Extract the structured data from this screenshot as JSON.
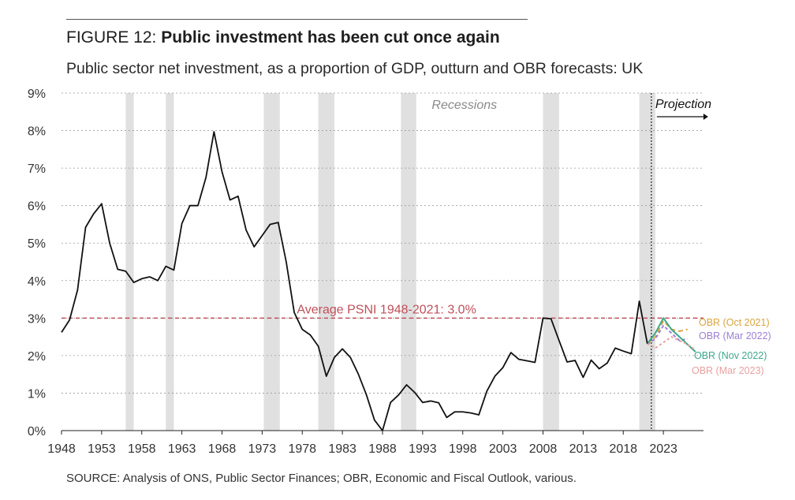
{
  "figure": {
    "label": "FIGURE 12:",
    "title": "Public investment has been cut once again",
    "subtitle": "Public sector net investment, as a proportion of GDP, outturn and OBR forecasts: UK",
    "source": "SOURCE: Analysis of ONS, Public Sector Finances; OBR, Economic and Fiscal Outlook, various."
  },
  "chart_data": {
    "type": "line",
    "ylim": [
      0,
      9
    ],
    "xlim": [
      1948,
      2028
    ],
    "y_ticks": [
      0,
      1,
      2,
      3,
      4,
      5,
      6,
      7,
      8,
      9
    ],
    "y_tick_labels": [
      "0%",
      "1%",
      "2%",
      "3%",
      "4%",
      "5%",
      "6%",
      "7%",
      "8%",
      "9%"
    ],
    "x_ticks": [
      1948,
      1953,
      1958,
      1963,
      1968,
      1973,
      1978,
      1983,
      1988,
      1993,
      1998,
      2003,
      2008,
      2013,
      2018,
      2023
    ],
    "x_tick_labels": [
      "1948",
      "1953",
      "1958",
      "1963",
      "1968",
      "1973",
      "1978",
      "1983",
      "1988",
      "1993",
      "1998",
      "2003",
      "2008",
      "2013",
      "2018",
      "2023"
    ],
    "grid": "horizontal dashed",
    "recessions_label": "Recessions",
    "recessions": [
      [
        1956,
        1957
      ],
      [
        1961,
        1962
      ],
      [
        1973.2,
        1975.2
      ],
      [
        1980,
        1982
      ],
      [
        1990.3,
        1992.2
      ],
      [
        2008,
        2010
      ],
      [
        2020,
        2022
      ]
    ],
    "projection_label": "Projection",
    "projection_start": 2021.5,
    "average": {
      "label": "Average PSNI 1948-2021: 3.0%",
      "value": 3.0,
      "color": "#c0505a"
    },
    "outturn": {
      "color": "#111111",
      "x": [
        1948,
        1949,
        1950,
        1951,
        1952,
        1953,
        1954,
        1955,
        1956,
        1957,
        1958,
        1959,
        1960,
        1961,
        1962,
        1963,
        1964,
        1965,
        1966,
        1967,
        1968,
        1969,
        1970,
        1971,
        1972,
        1973,
        1974,
        1975,
        1976,
        1977,
        1978,
        1979,
        1980,
        1981,
        1982,
        1983,
        1984,
        1985,
        1986,
        1987,
        1988,
        1989,
        1990,
        1991,
        1992,
        1993,
        1994,
        1995,
        1996,
        1997,
        1998,
        1999,
        2000,
        2001,
        2002,
        2003,
        2004,
        2005,
        2006,
        2007,
        2008,
        2009,
        2010,
        2011,
        2012,
        2013,
        2014,
        2015,
        2016,
        2017,
        2018,
        2019,
        2020,
        2021
      ],
      "y": [
        2.62,
        2.95,
        3.75,
        5.42,
        5.78,
        6.05,
        5.0,
        4.3,
        4.25,
        3.95,
        4.05,
        4.1,
        4.0,
        4.38,
        4.28,
        5.52,
        6.0,
        6.0,
        6.75,
        7.97,
        6.9,
        6.15,
        6.25,
        5.35,
        4.9,
        5.2,
        5.5,
        5.55,
        4.5,
        3.15,
        2.7,
        2.55,
        2.25,
        1.45,
        1.95,
        2.18,
        1.95,
        1.5,
        0.95,
        0.28,
        0.0,
        0.75,
        0.95,
        1.22,
        1.02,
        0.75,
        0.79,
        0.74,
        0.35,
        0.5,
        0.5,
        0.47,
        0.42,
        1.05,
        1.45,
        1.68,
        2.08,
        1.9,
        1.86,
        1.82,
        3.0,
        2.98,
        2.4,
        1.83,
        1.87,
        1.42,
        1.88,
        1.65,
        1.8,
        2.2,
        2.12,
        2.05,
        3.45,
        2.32
      ]
    },
    "series": [
      {
        "name": "OBR (Oct 2021)",
        "color": "#d9a53f",
        "x": [
          2021,
          2022,
          2023,
          2024,
          2025,
          2026
        ],
        "y": [
          2.32,
          2.5,
          2.93,
          2.7,
          2.65,
          2.7
        ]
      },
      {
        "name": "OBR (Mar 2022)",
        "color": "#9d7fd4",
        "x": [
          2021,
          2022,
          2023,
          2024,
          2025,
          2026
        ],
        "y": [
          2.3,
          2.45,
          2.8,
          2.6,
          2.4,
          2.45
        ]
      },
      {
        "name": "OBR (Nov 2022)",
        "color": "#3fa88a",
        "x": [
          2021,
          2022,
          2023,
          2024,
          2025,
          2026,
          2027
        ],
        "y": [
          2.32,
          2.6,
          3.0,
          2.7,
          2.5,
          2.3,
          2.1
        ]
      },
      {
        "name": "OBR (Mar 2023)",
        "color": "#e8a0a0",
        "x": [
          2021,
          2022,
          2023,
          2024,
          2025,
          2026,
          2027
        ],
        "y": [
          2.32,
          2.2,
          2.35,
          2.5,
          2.4,
          2.3,
          2.15
        ]
      }
    ]
  }
}
